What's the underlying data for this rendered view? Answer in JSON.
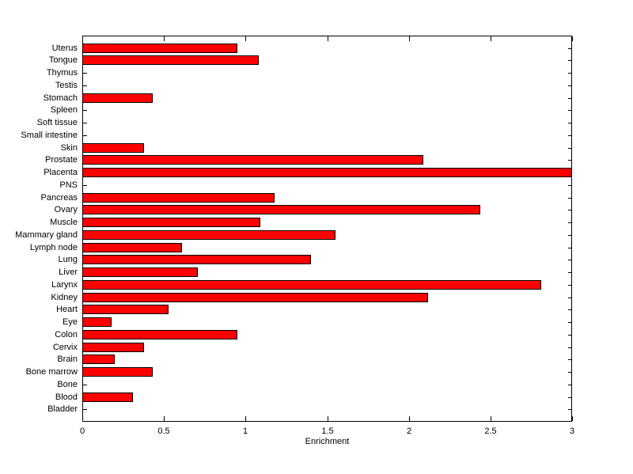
{
  "chart_data": {
    "type": "bar",
    "orientation": "horizontal",
    "title": "",
    "xlabel": "Enrichment",
    "ylabel": "",
    "categories": [
      "Uterus",
      "Tongue",
      "Thymus",
      "Testis",
      "Stomach",
      "Spleen",
      "Soft tissue",
      "Small intestine",
      "Skin",
      "Prostate",
      "Placenta",
      "PNS",
      "Pancreas",
      "Ovary",
      "Muscle",
      "Mammary gland",
      "Lymph node",
      "Lung",
      "Liver",
      "Larynx",
      "Kidney",
      "Heart",
      "Eye",
      "Colon",
      "Cervix",
      "Brain",
      "Bone marrow",
      "Bone",
      "Blood",
      "Bladder"
    ],
    "values": [
      0.95,
      1.08,
      0,
      0,
      0.43,
      0,
      0,
      0,
      0.38,
      2.09,
      3.0,
      0,
      1.18,
      2.44,
      1.09,
      1.55,
      0.61,
      1.4,
      0.71,
      2.81,
      2.12,
      0.53,
      0.18,
      0.95,
      0.38,
      0.2,
      0.43,
      0,
      0.31,
      0
    ],
    "xlim": [
      0,
      3
    ],
    "xticks": [
      0,
      0.5,
      1,
      1.5,
      2,
      2.5,
      3
    ],
    "xtick_labels": [
      "0",
      "0.5",
      "1",
      "1.5",
      "2",
      "2.5",
      "3"
    ],
    "grid": false,
    "legend": "none",
    "colors": {
      "bar_fill": "#FF0000",
      "bar_edge": "#000000",
      "axis": "#000000",
      "background": "#FFFFFF",
      "text": "#000000"
    }
  }
}
